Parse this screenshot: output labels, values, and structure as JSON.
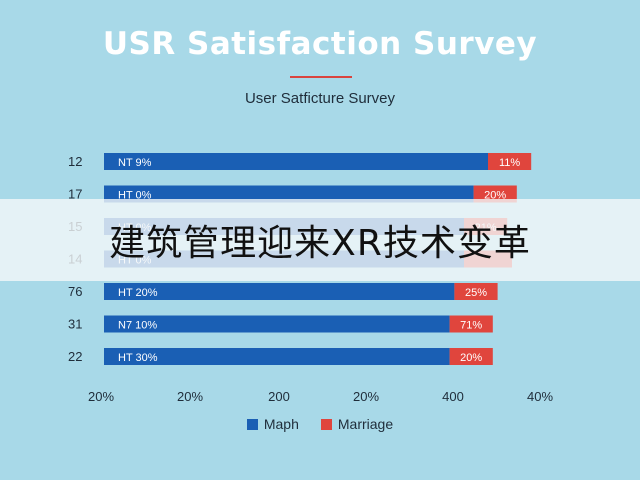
{
  "title": "USR Satisfaction Survey",
  "subtitle": "User Satficture Survey",
  "banner": "建筑管理迎来XR技术变革",
  "colors": {
    "series1": "#1a5fb4",
    "series2": "#e0453d",
    "text": "#1f2d3a"
  },
  "chart_data": {
    "type": "bar",
    "orientation": "horizontal",
    "stacked": true,
    "categories": [
      "12",
      "17",
      "15",
      "14",
      "76",
      "31",
      "22"
    ],
    "series": [
      {
        "name": "Maph",
        "values": [
          80,
          77,
          75,
          75,
          73,
          72,
          72
        ],
        "labels": [
          "NT 9%",
          "HT 0%",
          "HT 0%",
          "HT 0%",
          "HT 20%",
          "N7 10%",
          "HT 30%"
        ]
      },
      {
        "name": "Marriage",
        "values": [
          9,
          9,
          9,
          10,
          9,
          9,
          9
        ],
        "labels": [
          "11%",
          "20%",
          "21%",
          "",
          "25%",
          "71%",
          "20%"
        ]
      }
    ],
    "x_tick_labels": [
      "20%",
      "20%",
      "200",
      "20%",
      "400",
      "40%"
    ],
    "xlim": [
      0,
      100
    ],
    "legend": "bottom"
  }
}
